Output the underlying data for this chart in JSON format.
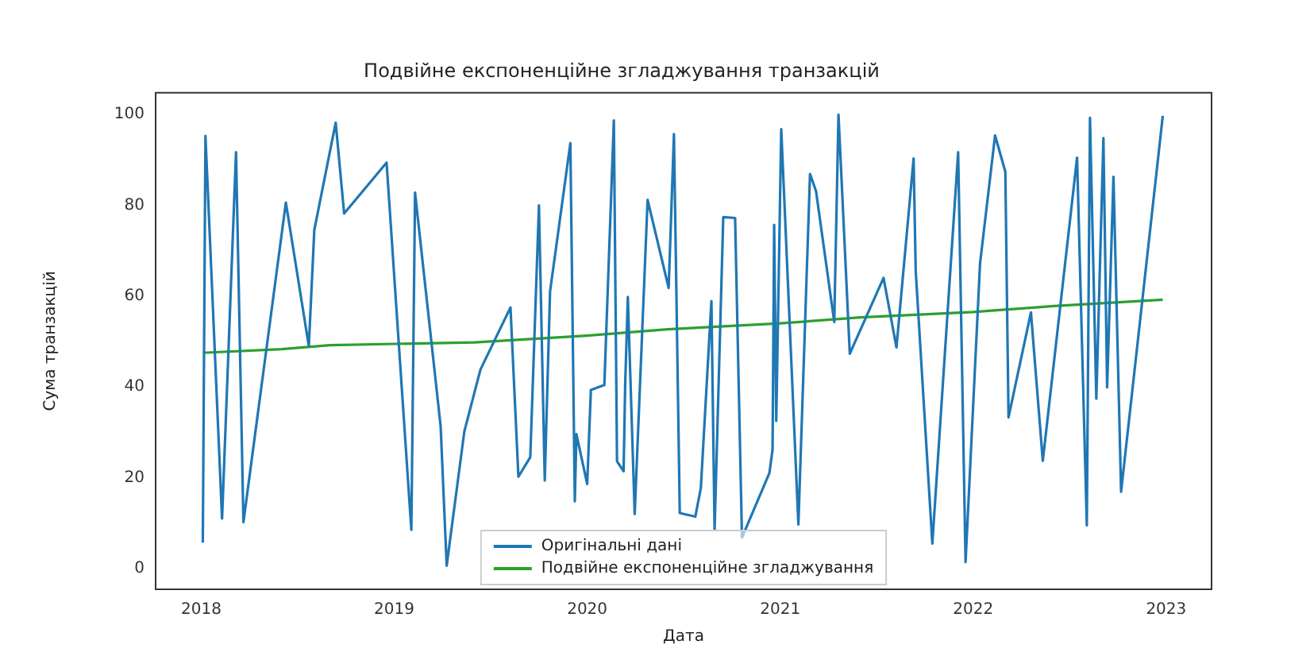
{
  "chart_data": {
    "type": "line",
    "title": "Подвійне експоненційне згладжування транзакцій",
    "xlabel": "Дата",
    "ylabel": "Сума транзакцій",
    "xlim": [
      "2017-10-06",
      "2023-03-26"
    ],
    "xticks": [
      "2018",
      "2019",
      "2020",
      "2021",
      "2022",
      "2023"
    ],
    "ylim": [
      -4.6,
      104.8
    ],
    "yticks": [
      0,
      20,
      40,
      60,
      80,
      100
    ],
    "grid": false,
    "legend": "bottom",
    "marker": "none",
    "series": [
      {
        "name": "Оригінальні дані",
        "color": "#1f77b4",
        "x": [
          "2018-01-04",
          "2018-01-09",
          "2018-02-10",
          "2018-03-06",
          "2018-03-20",
          "2018-06-09",
          "2018-07-22",
          "2018-08-02",
          "2018-09-12",
          "2018-09-28",
          "2018-12-17",
          "2019-02-03",
          "2019-02-10",
          "2019-03-28",
          "2019-04-09",
          "2019-05-12",
          "2019-06-12",
          "2019-08-08",
          "2019-08-23",
          "2019-09-15",
          "2019-10-01",
          "2019-10-12",
          "2019-10-22",
          "2019-11-30",
          "2019-12-08",
          "2019-12-11",
          "2020-01-01",
          "2020-01-08",
          "2020-02-03",
          "2020-02-21",
          "2020-02-27",
          "2020-03-09",
          "2020-03-12",
          "2020-03-17",
          "2020-03-30",
          "2020-04-24",
          "2020-06-03",
          "2020-06-13",
          "2020-06-24",
          "2020-07-23",
          "2020-08-03",
          "2020-08-23",
          "2020-08-29",
          "2020-09-15",
          "2020-10-07",
          "2020-10-20",
          "2020-12-11",
          "2020-12-17",
          "2020-12-20",
          "2020-12-24",
          "2021-01-03",
          "2021-02-05",
          "2021-02-27",
          "2021-03-08",
          "2021-04-12",
          "2021-04-20",
          "2021-05-11",
          "2021-07-14",
          "2021-08-08",
          "2021-09-10",
          "2021-09-14",
          "2021-10-15",
          "2021-12-03",
          "2021-12-17",
          "2022-01-14",
          "2022-02-12",
          "2022-03-01",
          "2022-03-07",
          "2022-04-19",
          "2022-05-11",
          "2022-07-15",
          "2022-08-03",
          "2022-08-09",
          "2022-08-21",
          "2022-09-04",
          "2022-09-11",
          "2022-09-23",
          "2022-10-07",
          "2022-12-25"
        ],
        "values": [
          5.7,
          95.3,
          11,
          91.7,
          10.2,
          80.6,
          49,
          74.6,
          98.2,
          78.2,
          89.4,
          8.5,
          82.8,
          31.3,
          0.6,
          30.2,
          43.8,
          57.5,
          20.2,
          24.5,
          80,
          19.4,
          61,
          93.7,
          14.8,
          29.6,
          18.6,
          39.3,
          40.4,
          98.7,
          23.6,
          21.4,
          40.4,
          59.8,
          12,
          81.2,
          61.8,
          95.7,
          12.2,
          11.4,
          17.7,
          58.9,
          8.5,
          77.4,
          77.2,
          6.8,
          21,
          26.2,
          75.7,
          32.5,
          96.8,
          9.7,
          86.9,
          83.1,
          54.3,
          100,
          47.3,
          64,
          48.7,
          90.3,
          65.5,
          5.5,
          91.7,
          1.4,
          67.2,
          95.4,
          87.4,
          33.3,
          56.4,
          23.7,
          90.5,
          9.5,
          99.3,
          37.4,
          94.8,
          39.9,
          86.3,
          16.9,
          99.7
        ]
      },
      {
        "name": "Подвійне експоненційне згладжування",
        "color": "#2ca02c",
        "x": [
          "2018-01-04",
          "2018-06-01",
          "2018-09-01",
          "2019-06-01",
          "2020-01-01",
          "2020-06-01",
          "2021-01-01",
          "2021-06-01",
          "2022-01-01",
          "2022-06-01",
          "2022-12-25"
        ],
        "values": [
          47.5,
          48.3,
          49.2,
          49.8,
          51.3,
          52.7,
          54,
          55.3,
          56.5,
          57.8,
          59.2
        ]
      }
    ]
  }
}
